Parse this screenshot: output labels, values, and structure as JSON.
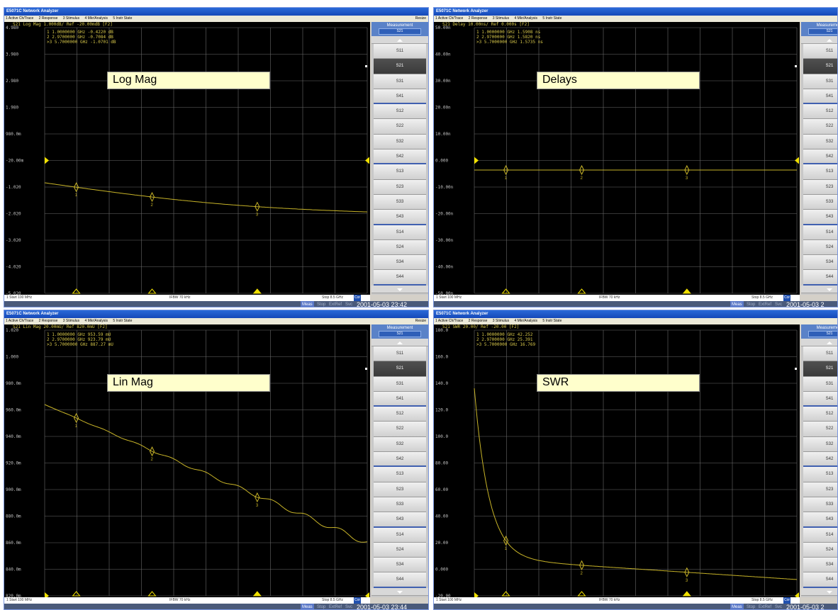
{
  "app_title": "E5071C Network Analyzer",
  "menu": [
    "1 Active Ch/Trace",
    "2 Response",
    "3 Stimulus",
    "4 Mkr/Analysis",
    "5 Instr State"
  ],
  "menu_resize": "Resize",
  "softkeys": {
    "header": "Measurement",
    "selected_label": "S21",
    "items": [
      "S11",
      "S21",
      "S31",
      "S41",
      "S12",
      "S22",
      "S32",
      "S42",
      "S13",
      "S23",
      "S33",
      "S43",
      "S14",
      "S24",
      "S34",
      "S44"
    ]
  },
  "panels": [
    {
      "label": "Log Mag",
      "header": "S21 Log Mag 1.000dB/ Ref -20.00mdB [F2]",
      "markers": [
        "  1  1.0000000 GHz -0.4220 dB",
        "  2  2.9700000 GHz -0.7084 dB",
        ">3  5.7000000 GHz -1.0701 dB"
      ],
      "y_ticks": [
        "4.980",
        "3.980",
        "2.980",
        "1.980",
        "980.0m",
        "-20.00m",
        "-1.020",
        "-2.020",
        "-3.020",
        "-4.020",
        "-5.020"
      ],
      "ref_tick": 5,
      "start": "1  Start 100 MHz",
      "ifbw": "IFBW 70 kHz",
      "stop": "Stop 8.5 GHz",
      "cor": "Cor",
      "meas": "Meas",
      "stop_btn": "Stop",
      "extref": "ExtRef",
      "svc": "Svc",
      "clock": "2001-05-03 23:42"
    },
    {
      "label": "Delays",
      "header": "S21 Delay 10.00ns/ Ref 0.000s [F2]",
      "markers": [
        "  1  1.0000000 GHz  1.5908 ns",
        "  2  2.9700000 GHz  1.5820 ns",
        ">3  5.7000000 GHz  1.5735 ns"
      ],
      "y_ticks": [
        "50.00n",
        "40.00n",
        "30.00n",
        "20.00n",
        "10.00n",
        "0.000",
        "-10.00n",
        "-20.00n",
        "-30.00n",
        "-40.00n",
        "-50.00n"
      ],
      "ref_tick": 5,
      "start": "1  Start 100 MHz",
      "ifbw": "IFBW 70 kHz",
      "stop": "Stop 8.5 GHz",
      "cor": "Cor",
      "meas": "Meas",
      "stop_btn": "Stop",
      "extref": "ExtRef",
      "svc": "Svc",
      "clock": "2001-05-03 2"
    },
    {
      "label": "Lin Mag",
      "header": "S21 Lin Mag 20.00mU/ Ref 820.0mU [F2]",
      "markers": [
        "  1  1.0000000 GHz  953.59 mU",
        "  2  2.9700000 GHz  923.79 mU",
        ">3  5.7000000 GHz  887.27 mU"
      ],
      "y_ticks": [
        "1.020",
        "1.000",
        "980.0m",
        "960.0m",
        "940.0m",
        "920.0m",
        "900.0m",
        "880.0m",
        "860.0m",
        "840.0m",
        "820.0m"
      ],
      "ref_tick": 10,
      "start": "1  Start 100 MHz",
      "ifbw": "IFBW 70 kHz",
      "stop": "Stop 8.5 GHz",
      "cor": "Cor",
      "meas": "Meas",
      "stop_btn": "Stop",
      "extref": "ExtRef",
      "svc": "Svc",
      "clock": "2001-05-03 23:44"
    },
    {
      "label": "SWR",
      "header": "S21 SWR 20.00/ Ref -20.00 [F2]",
      "markers": [
        "  1  1.0000000 GHz  42.252",
        "  2  2.9700000 GHz  25.391",
        ">3  5.7000000 GHz  16.769"
      ],
      "y_ticks": [
        "180.0",
        "160.0",
        "140.0",
        "120.0",
        "100.0",
        "80.00",
        "60.00",
        "40.00",
        "20.00",
        "0.000",
        "-20.00"
      ],
      "ref_tick": 10,
      "start": "1  Start 100 MHz",
      "ifbw": "IFBW 70 kHz",
      "stop": "Stop 8.5 GHz",
      "cor": "Cor",
      "meas": "Meas",
      "stop_btn": "Stop",
      "extref": "ExtRef",
      "svc": "Svc",
      "clock": "2001-05-03 2"
    }
  ],
  "colors": {
    "trace": "#c8b428",
    "grid": "#6a6a6a",
    "text": "#d8c84a",
    "marker_arrow": "#f0e000"
  }
}
